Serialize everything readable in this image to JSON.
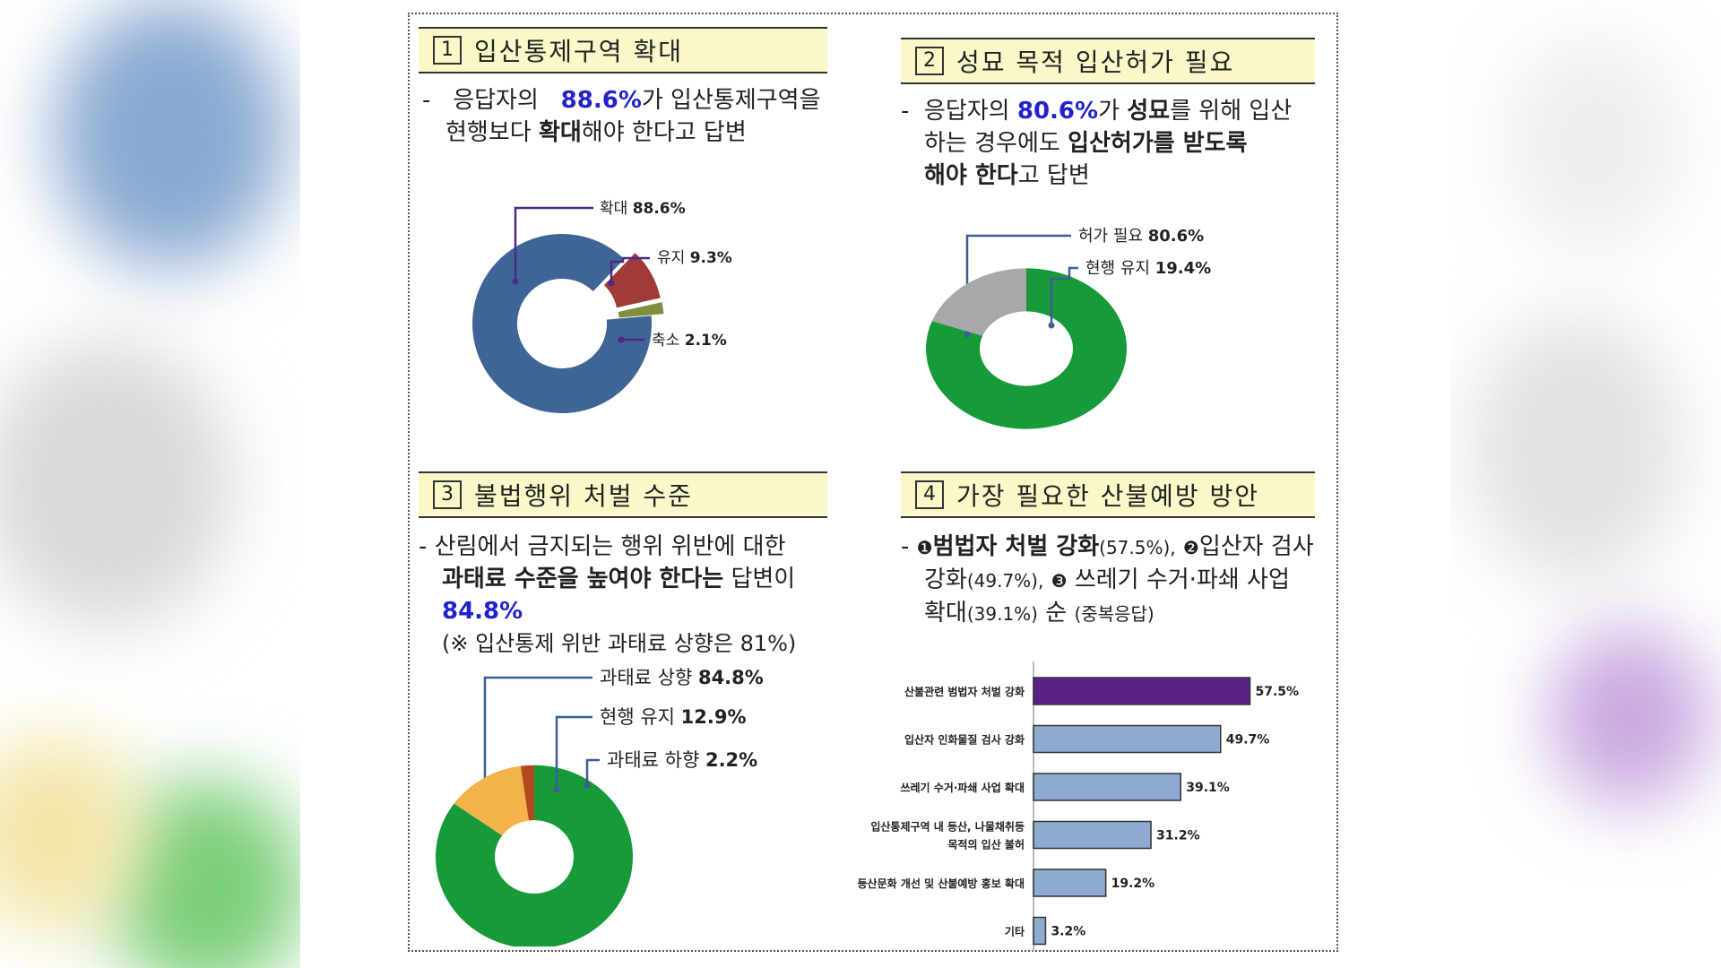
{
  "colors": {
    "blue": "#3f6597",
    "red": "#a23a3a",
    "olive": "#7f8f3f",
    "green": "#179a38",
    "gray": "#a8a8a8",
    "orange": "#f4b24a",
    "brown": "#b04a1e",
    "purple": "#5b1f86",
    "lightblue": "#8fa9d1",
    "highlight": "#2222cc",
    "header_bg": "#faf8c8"
  },
  "panel1": {
    "num": "1",
    "title": "입산통제구역 확대",
    "desc": {
      "dash": "-",
      "a": "응답자의",
      "pct": "88.6%",
      "b": "가 입산통제구역을",
      "c": "현행보다",
      "bold": "확대",
      "d": "해야 한다고 답변"
    }
  },
  "panel2": {
    "num": "2",
    "title": "성묘 목적 입산허가 필요",
    "desc": {
      "dash": "-",
      "a": "응답자의",
      "pct": "80.6%",
      "b": "가",
      "bold1": "성묘",
      "c": "를 위해 입산",
      "d": "하는 경우에도",
      "bold2": "입산허가를 받도록",
      "bold3": "해야 한다",
      "e": "고 답변"
    }
  },
  "panel3": {
    "num": "3",
    "title": "불법행위 처벌 수준",
    "desc": {
      "dash": "-",
      "a": "산림에서 금지되는 행위 위반에 대한",
      "bold": "과태료 수준을 높여야 한다는",
      "b": "답변이",
      "pct": "84.8%",
      "note": "(※ 입산통제 위반 과태료 상향은 81%)"
    }
  },
  "panel4": {
    "num": "4",
    "title": "가장 필요한 산불예방 방안",
    "desc": {
      "dash": "-",
      "m1": "❶",
      "bold1": "범법자 처벌 강화",
      "p1": "(57.5%),",
      "m2": "❷",
      "t2a": "입산자 검사",
      "t2b": "강화",
      "p2": "(49.7%),",
      "m3": "❸",
      "t3": "쓰레기 수거·파쇄 사업",
      "t3b": "확대",
      "p3": "(39.1%)",
      "end": "순",
      "dup": "(중복응답)"
    }
  },
  "chart_data": [
    {
      "type": "pie",
      "donut": true,
      "title": "입산통제구역 확대",
      "slices": [
        {
          "label": "확대",
          "value": 88.6,
          "value_text": "88.6%",
          "color": "#3f6597"
        },
        {
          "label": "유지",
          "value": 9.3,
          "value_text": "9.3%",
          "color": "#a23a3a"
        },
        {
          "label": "축소",
          "value": 2.1,
          "value_text": "2.1%",
          "color": "#7f8f3f"
        }
      ]
    },
    {
      "type": "pie",
      "donut": true,
      "title": "성묘 목적 입산허가 필요",
      "slices": [
        {
          "label": "허가 필요",
          "value": 80.6,
          "value_text": "80.6%",
          "color": "#179a38"
        },
        {
          "label": "현행 유지",
          "value": 19.4,
          "value_text": "19.4%",
          "color": "#a8a8a8"
        }
      ]
    },
    {
      "type": "pie",
      "donut": true,
      "title": "불법행위 처벌 수준",
      "slices": [
        {
          "label": "과태료 상향",
          "value": 84.8,
          "value_text": "84.8%",
          "color": "#179a38"
        },
        {
          "label": "현행 유지",
          "value": 12.9,
          "value_text": "12.9%",
          "color": "#f4b24a"
        },
        {
          "label": "과태료 하향",
          "value": 2.2,
          "value_text": "2.2%",
          "color": "#b04a1e"
        }
      ]
    },
    {
      "type": "bar",
      "orientation": "horizontal",
      "title": "가장 필요한 산불예방 방안",
      "xlim": [
        0,
        100
      ],
      "categories": [
        [
          "산불관련 범법자 처벌 강화"
        ],
        [
          "입산자 인화물질 검사 강화"
        ],
        [
          "쓰레기 수거·파쇄 사업 확대"
        ],
        [
          "입산통제구역 내 등산, 나물채취등",
          "목적의 입산 불허"
        ],
        [
          "등산문화 개선 및 산불예방 홍보 확대"
        ],
        [
          "기타"
        ]
      ],
      "values": [
        57.5,
        49.7,
        39.1,
        31.2,
        19.2,
        3.2
      ],
      "value_labels": [
        "57.5%",
        "49.7%",
        "39.1%",
        "31.2%",
        "19.2%",
        "3.2%"
      ],
      "colors": [
        "#5b1f86",
        "#8fa9d1",
        "#8fa9d1",
        "#8fa9d1",
        "#8fa9d1",
        "#8fa9d1"
      ]
    }
  ]
}
